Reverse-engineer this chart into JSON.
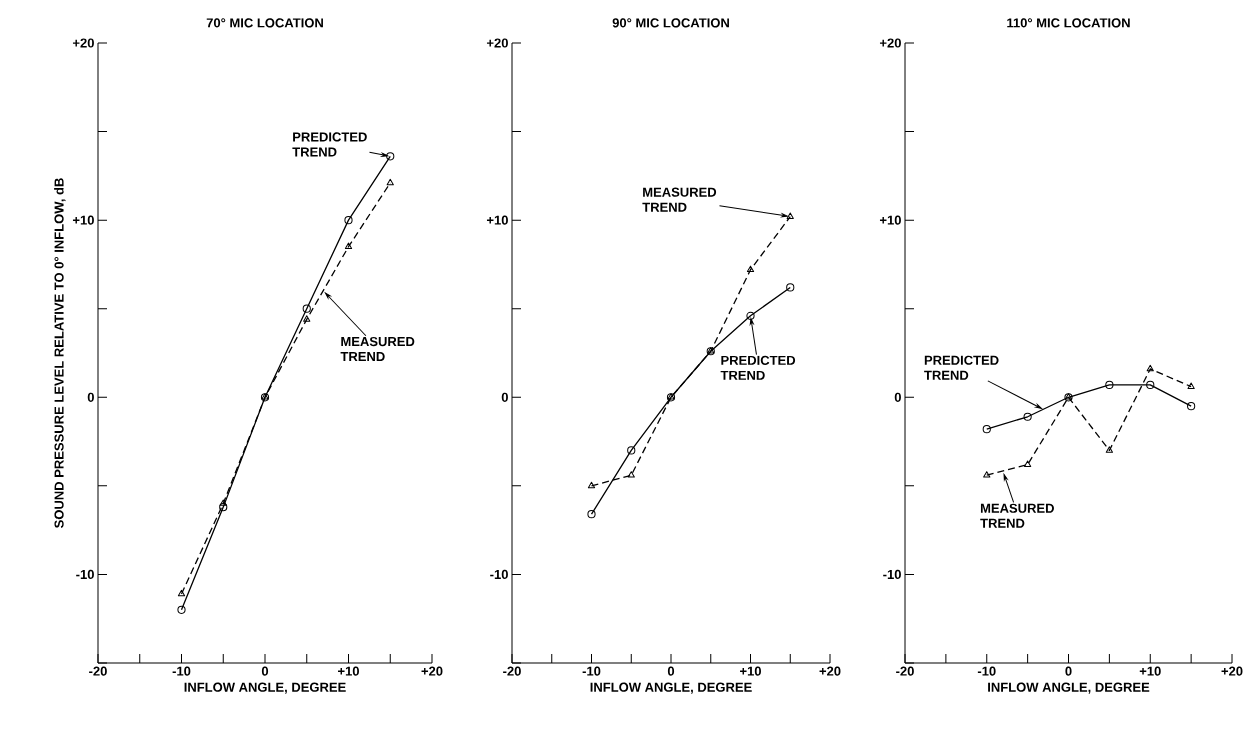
{
  "chart_data": [
    {
      "type": "line",
      "title": "70° MIC LOCATION",
      "xlabel": "INFLOW ANGLE, DEGREE",
      "ylabel": "SOUND PRESSURE LEVEL RELATIVE TO 0° INFLOW, dB",
      "x": [
        -10,
        -5,
        0,
        5,
        10,
        15
      ],
      "series": [
        {
          "color": "#000000",
          "marker": "circle",
          "line_style": "solid",
          "values": [
            -12,
            -6.2,
            0,
            5,
            10,
            13.6
          ]
        },
        {
          "color": "#000000",
          "marker": "triangle",
          "line_style": "dashed",
          "values": [
            -11.1,
            -6,
            0,
            4.4,
            8.5,
            12.1
          ]
        }
      ],
      "xlim": [
        -20,
        20
      ],
      "ylim": [
        -15,
        20
      ],
      "xticks": [
        -20,
        {
          "value": -15,
          "label": null
        },
        -10,
        {
          "value": -5,
          "label": null
        },
        0,
        {
          "value": 5,
          "label": null
        },
        {
          "value": 10,
          "label": "+10"
        },
        {
          "value": 15,
          "label": null
        },
        {
          "value": 20,
          "label": "+20"
        }
      ],
      "yticks": [
        {
          "value": -15,
          "label": null
        },
        -10,
        {
          "value": -5,
          "label": null
        },
        0,
        {
          "value": 5,
          "label": null
        },
        {
          "value": 10,
          "label": "+10"
        },
        {
          "value": 15,
          "label": null
        },
        {
          "value": 20,
          "label": "+20"
        }
      ],
      "annotations": [
        {
          "text": "PREDICTED TREND",
          "x": 15,
          "y": 13.6
        },
        {
          "text": "MEASURED TREND",
          "x": 7,
          "y": 6
        }
      ]
    },
    {
      "type": "line",
      "title": "90° MIC LOCATION",
      "xlabel": "INFLOW ANGLE, DEGREE",
      "x": [
        -10,
        -5,
        0,
        5,
        10,
        15
      ],
      "series": [
        {
          "color": "#000000",
          "marker": "circle",
          "line_style": "solid",
          "values": [
            -6.6,
            -3,
            0,
            2.6,
            4.6,
            6.2
          ]
        },
        {
          "color": "#000000",
          "marker": "triangle",
          "line_style": "dashed",
          "values": [
            -5,
            -4.4,
            0,
            2.6,
            7.2,
            10.2
          ]
        }
      ],
      "xlim": [
        -20,
        20
      ],
      "ylim": [
        -15,
        20
      ],
      "xticks": [
        -20,
        {
          "value": -15,
          "label": null
        },
        -10,
        {
          "value": -5,
          "label": null
        },
        0,
        {
          "value": 5,
          "label": null
        },
        {
          "value": 10,
          "label": "+10"
        },
        {
          "value": 15,
          "label": null
        },
        {
          "value": 20,
          "label": "+20"
        }
      ],
      "yticks": [
        {
          "value": -15,
          "label": null
        },
        -10,
        {
          "value": -5,
          "label": null
        },
        0,
        {
          "value": 5,
          "label": null
        },
        {
          "value": 10,
          "label": "+10"
        },
        {
          "value": 15,
          "label": null
        },
        {
          "value": 20,
          "label": "+20"
        }
      ],
      "annotations": [
        {
          "text": "MEASURED TREND",
          "x": 15,
          "y": 10.2
        },
        {
          "text": "PREDICTED TREND",
          "x": 10,
          "y": 4.6
        }
      ]
    },
    {
      "type": "line",
      "title": "110° MIC LOCATION",
      "xlabel": "INFLOW ANGLE, DEGREE",
      "x": [
        -10,
        -5,
        0,
        5,
        10,
        15
      ],
      "series": [
        {
          "color": "#000000",
          "marker": "circle",
          "line_style": "solid",
          "values": [
            -1.8,
            -1.1,
            0,
            0.7,
            0.7,
            -0.5
          ]
        },
        {
          "color": "#000000",
          "marker": "triangle",
          "line_style": "dashed",
          "values": [
            -4.4,
            -3.8,
            0,
            -3,
            1.6,
            0.6
          ]
        }
      ],
      "xlim": [
        -20,
        20
      ],
      "ylim": [
        -15,
        20
      ],
      "xticks": [
        -20,
        {
          "value": -15,
          "label": null
        },
        -10,
        {
          "value": -5,
          "label": null
        },
        0,
        {
          "value": 5,
          "label": null
        },
        {
          "value": 10,
          "label": "+10"
        },
        {
          "value": 15,
          "label": null
        },
        {
          "value": 20,
          "label": "+20"
        }
      ],
      "yticks": [
        {
          "value": -15,
          "label": null
        },
        -10,
        {
          "value": -5,
          "label": null
        },
        0,
        {
          "value": 5,
          "label": null
        },
        {
          "value": 10,
          "label": "+10"
        },
        {
          "value": 15,
          "label": null
        },
        {
          "value": 20,
          "label": "+20"
        }
      ],
      "annotations": [
        {
          "text": "PREDICTED TREND",
          "x": -3,
          "y": -0.7
        },
        {
          "text": "MEASURED TREND",
          "x": -8,
          "y": -4.2
        }
      ]
    }
  ]
}
